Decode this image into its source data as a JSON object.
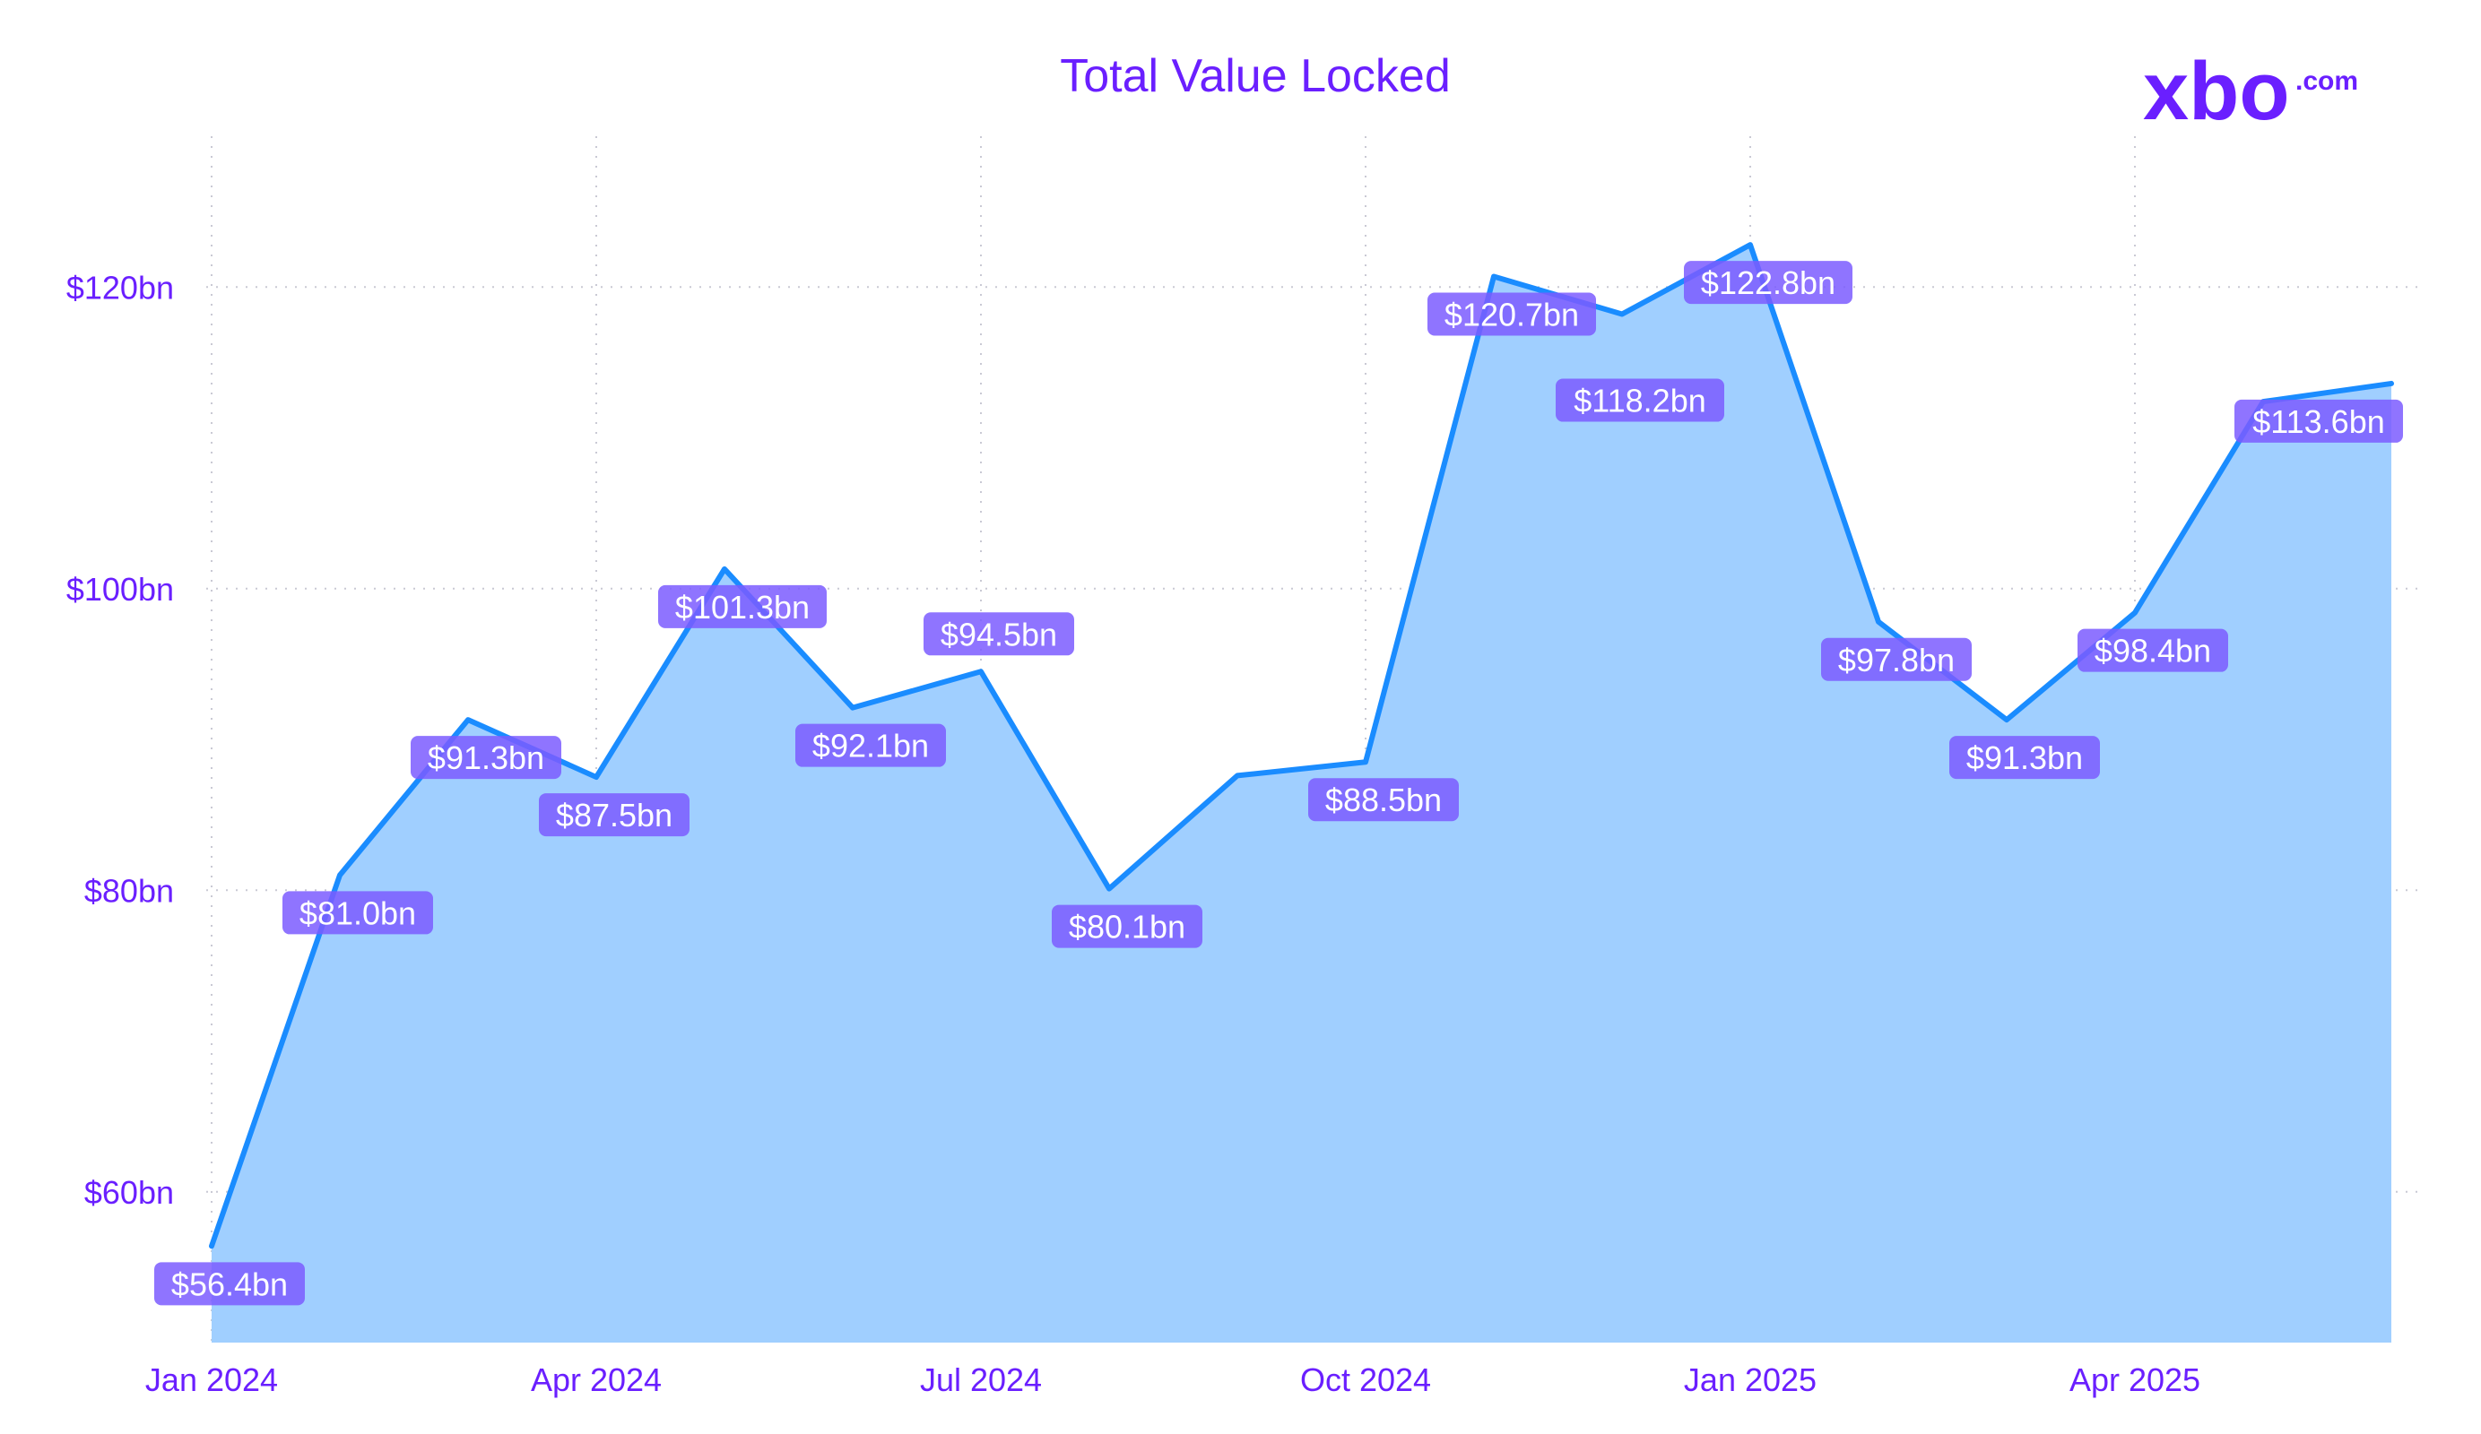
{
  "chart_data": {
    "type": "area",
    "title": "Total Value Locked",
    "xlabel": "",
    "ylabel": "",
    "x": [
      "2024-01",
      "2024-02",
      "2024-03",
      "2024-04",
      "2024-05",
      "2024-06",
      "2024-07",
      "2024-08",
      "2024-09",
      "2024-10",
      "2024-11",
      "2024-12",
      "2025-01",
      "2025-02",
      "2025-03",
      "2025-04",
      "2025-05",
      "2025-06"
    ],
    "values": [
      56.4,
      81.0,
      91.3,
      87.5,
      101.3,
      92.1,
      94.5,
      80.1,
      87.6,
      88.5,
      120.7,
      118.2,
      122.8,
      97.8,
      91.3,
      98.4,
      112.4,
      113.6
    ],
    "data_labels": [
      "$56.4bn",
      "$81.0bn",
      "$91.3bn",
      "$87.5bn",
      "$101.3bn",
      "$92.1bn",
      "$94.5bn",
      "$80.1bn",
      "",
      "$88.5bn",
      "$120.7bn",
      "$118.2bn",
      "$122.8bn",
      "$97.8bn",
      "$91.3bn",
      "$98.4bn",
      "",
      "$113.6bn"
    ],
    "x_ticks": [
      {
        "month": "2024-01",
        "label": "Jan 2024"
      },
      {
        "month": "2024-04",
        "label": "Apr 2024"
      },
      {
        "month": "2024-07",
        "label": "Jul 2024"
      },
      {
        "month": "2024-10",
        "label": "Oct 2024"
      },
      {
        "month": "2025-01",
        "label": "Jan 2025"
      },
      {
        "month": "2025-04",
        "label": "Apr 2025"
      }
    ],
    "y_ticks": [
      {
        "value": 60,
        "label": "$60bn"
      },
      {
        "value": 80,
        "label": "$80bn"
      },
      {
        "value": 100,
        "label": "$100bn"
      },
      {
        "value": 120,
        "label": "$120bn"
      }
    ],
    "ylim": [
      50,
      130
    ],
    "grid": true,
    "legend": "none",
    "colors": {
      "line": "#1a8cff",
      "fill": "#a0cfff",
      "label_bg": "#7b5cff",
      "title": "#6a1fff",
      "axis_text": "#6a1fff"
    }
  },
  "logo": {
    "text": "xbo",
    "suffix": ".com",
    "color": "#6a1fff"
  }
}
